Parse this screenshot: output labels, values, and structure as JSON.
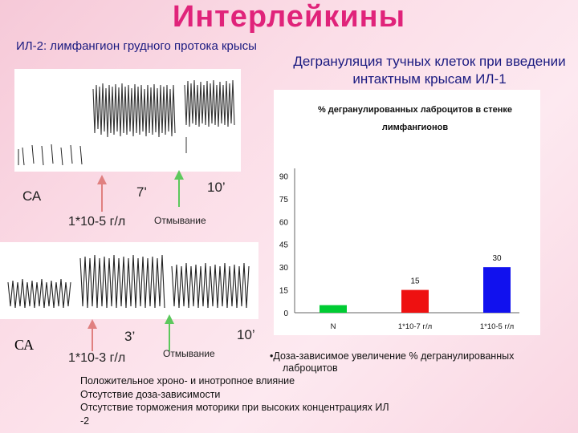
{
  "slide": {
    "title": "Интерлейкины",
    "subtitle_left": "ИЛ-2: лимфангион грудного протока крысы",
    "subtitle_right": "Дегрануляция тучных клеток при введении интактным крысам ИЛ-1"
  },
  "trace_top": {
    "ca": "СА",
    "time1": "7'",
    "time2": "10’",
    "conc": "1*10-5 г/л",
    "wash": "Отмывание"
  },
  "trace_bottom": {
    "ca": "СА",
    "time1": "3’",
    "time2": "10’",
    "conc": "1*10-3 г/л",
    "wash": "Отмывание"
  },
  "colors": {
    "title": "#e0237a",
    "subtitle": "#1a1a80",
    "arrow_red": "#e08080",
    "arrow_green": "#5cc85c",
    "bar_green": "#00cc33",
    "bar_red": "#ee1111",
    "bar_blue": "#1111ee"
  },
  "chart_data": {
    "type": "bar",
    "title": "% дегранулированных лаброцитов в стенке лимфангионов",
    "categories": [
      "N",
      "1*10-7 г/л",
      "1*10-5 г/л"
    ],
    "values": [
      5,
      15,
      30
    ],
    "value_labels": [
      "",
      "15",
      "30"
    ],
    "yticks": [
      "0",
      "15",
      "30",
      "45",
      "60",
      "75",
      "90"
    ],
    "ylim": [
      0,
      95
    ],
    "grid": false
  },
  "notes": [
    "•Доза-зависимое увеличение % дегранулированных",
    "лаброцитов",
    "Положительное хроно- и инотропное влияние",
    "Отсутствие доза-зависимости",
    "Отсутствие торможения моторики при высоких концентрациях ИЛ",
    "-2"
  ]
}
